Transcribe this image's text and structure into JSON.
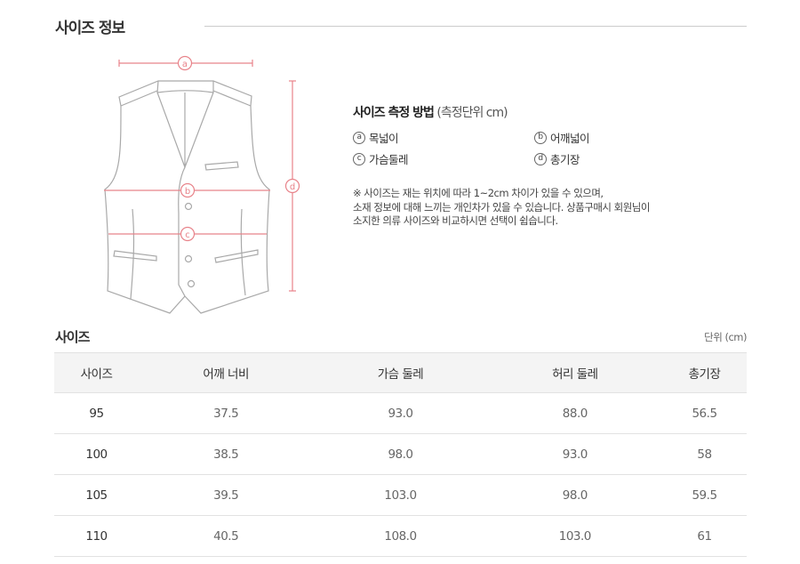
{
  "header": {
    "title": "사이즈 정보"
  },
  "diagram": {
    "labels": [
      "a",
      "b",
      "c",
      "d"
    ],
    "accent_color": "#e8838a",
    "outline_color": "#a9a9a9"
  },
  "method": {
    "title": "사이즈 측정 방법",
    "unit": "(측정단위 cm)",
    "items": [
      {
        "mark": "a",
        "label": "목넓이"
      },
      {
        "mark": "b",
        "label": "어깨넓이"
      },
      {
        "mark": "c",
        "label": "가슴둘레"
      },
      {
        "mark": "d",
        "label": "총기장"
      }
    ],
    "note_lines": [
      "※ 사이즈는 재는 위치에 따라 1~2cm 차이가 있을 수 있으며,",
      "소재 정보에 대해 느끼는 개인차가 있을 수 있습니다. 상품구매시 회원님이",
      "소지한 의류 사이즈와 비교하시면 선택이 쉽습니다."
    ]
  },
  "size_table": {
    "title": "사이즈",
    "unit": "단위 (cm)",
    "columns": [
      "사이즈",
      "어깨 너비",
      "가슴 둘레",
      "허리 둘레",
      "총기장"
    ],
    "rows": [
      [
        "95",
        "37.5",
        "93.0",
        "88.0",
        "56.5"
      ],
      [
        "100",
        "38.5",
        "98.0",
        "93.0",
        "58"
      ],
      [
        "105",
        "39.5",
        "103.0",
        "98.0",
        "59.5"
      ],
      [
        "110",
        "40.5",
        "108.0",
        "103.0",
        "61"
      ]
    ]
  }
}
